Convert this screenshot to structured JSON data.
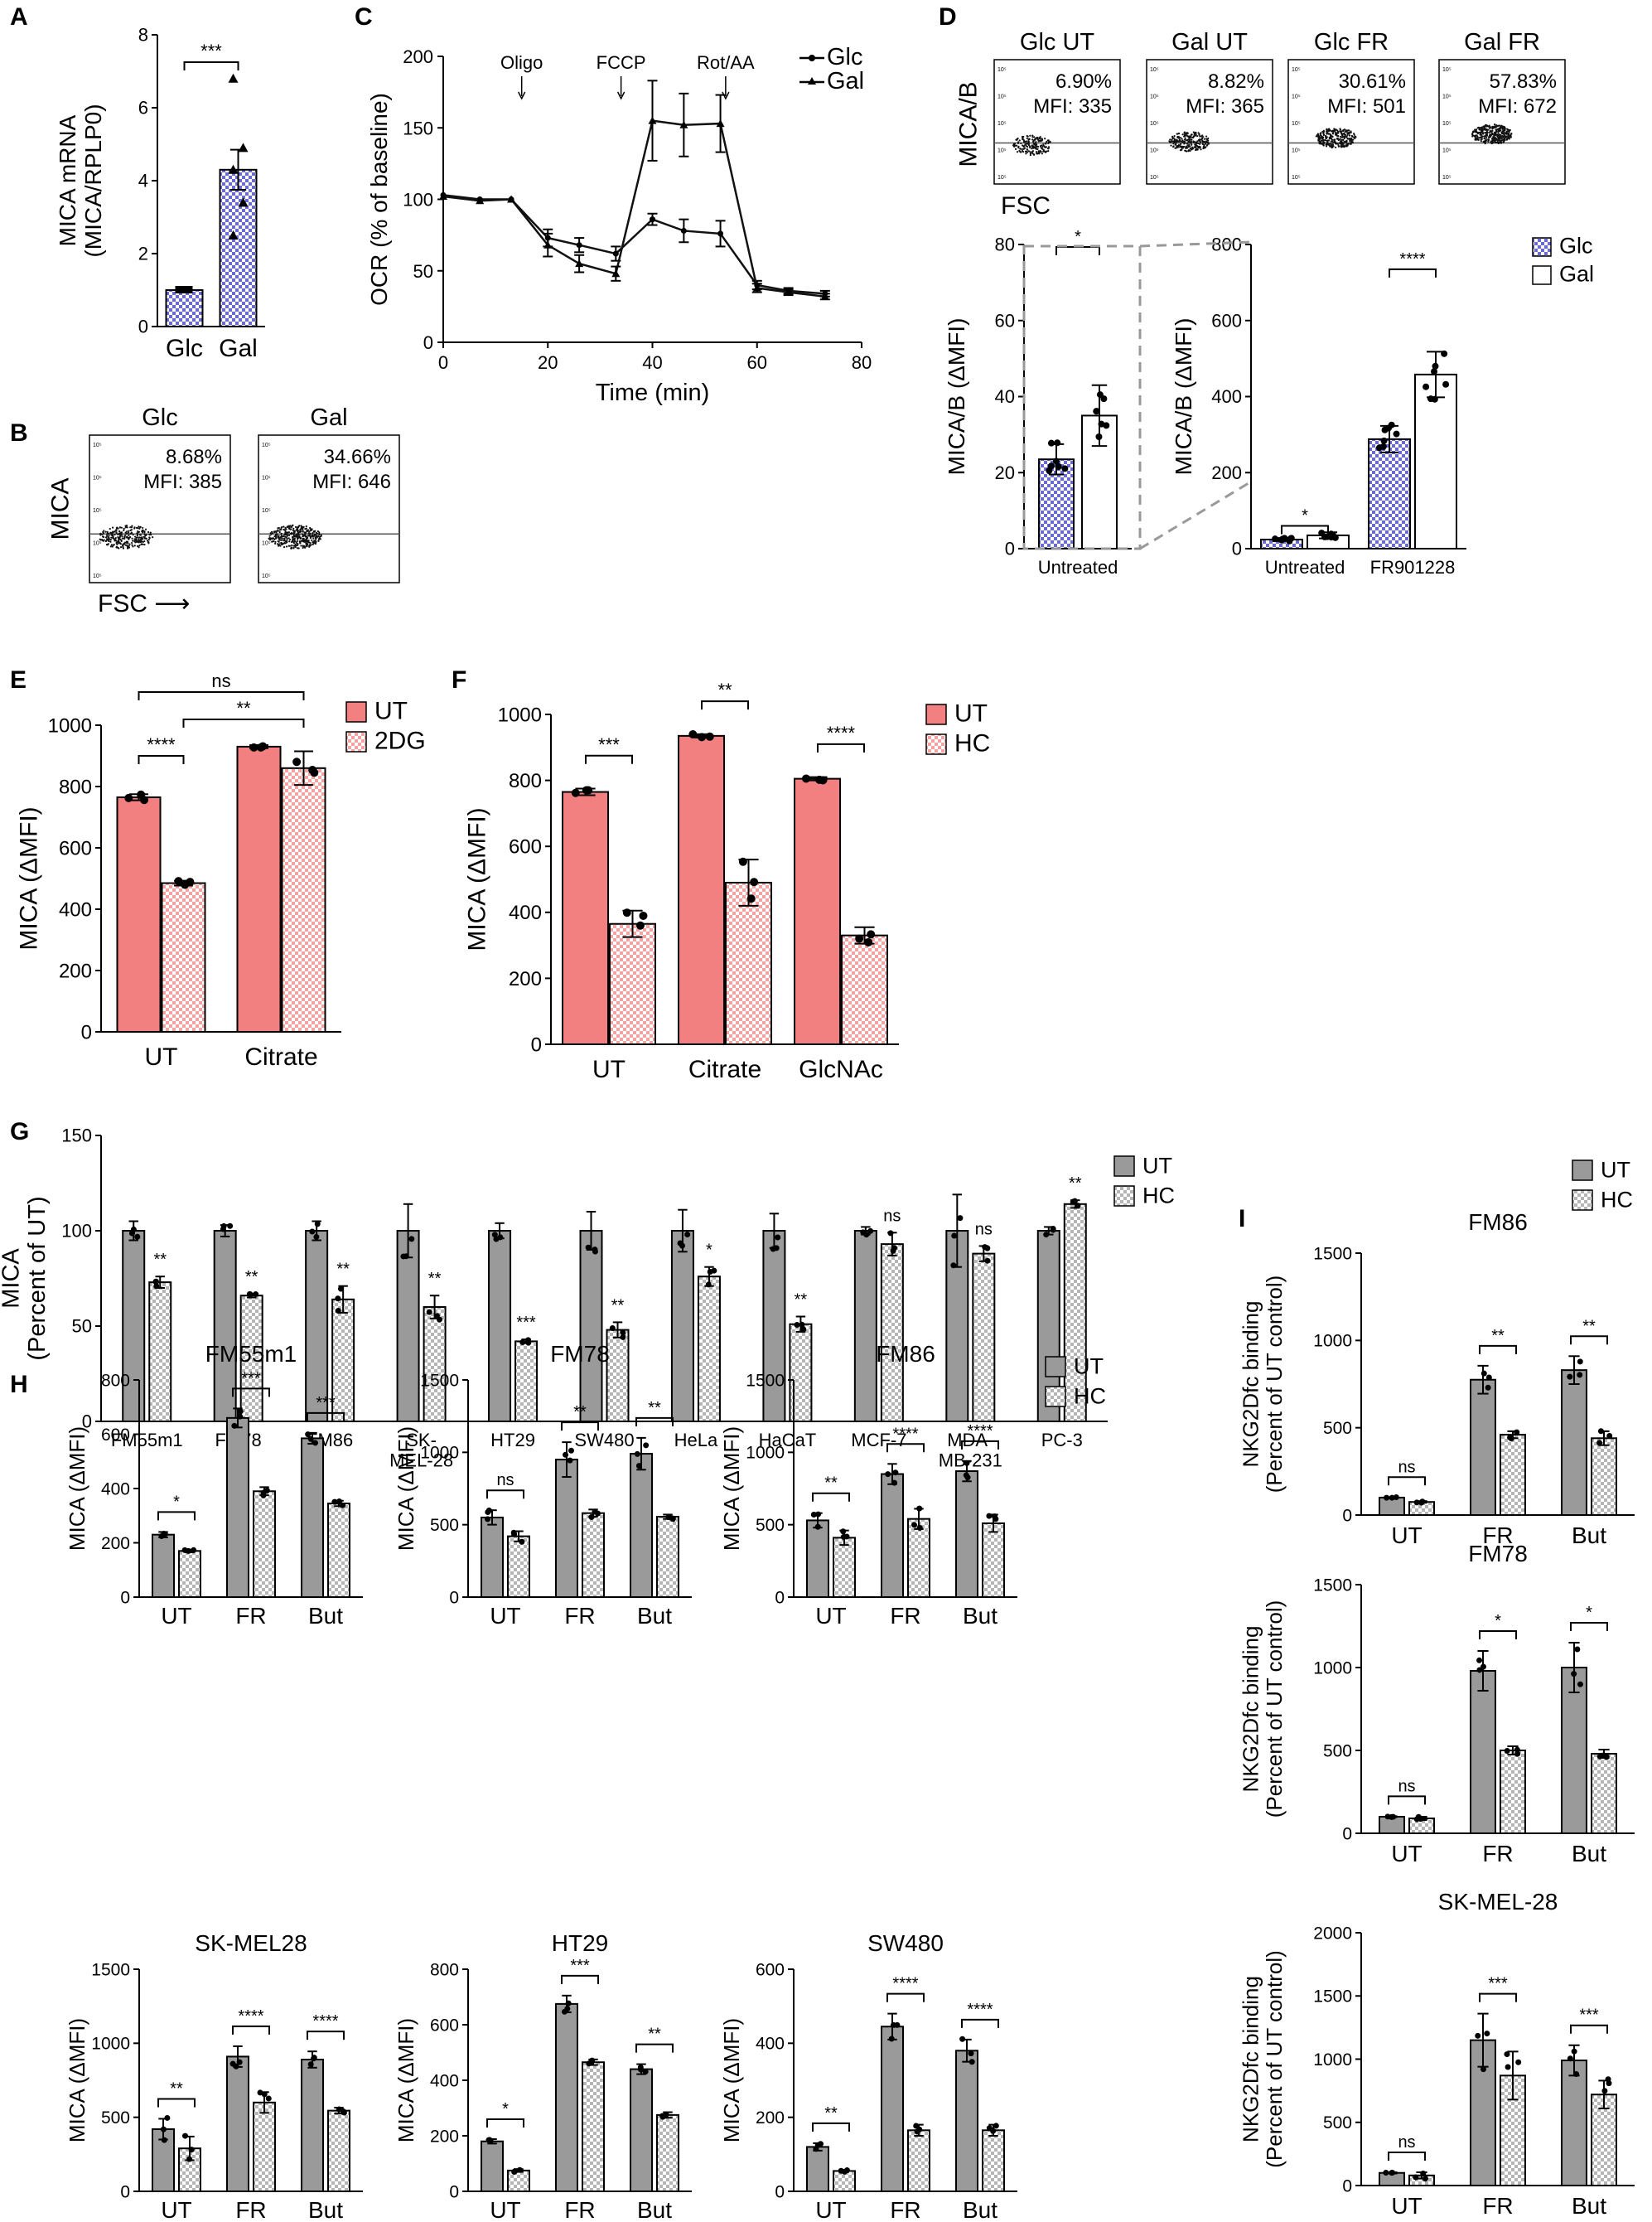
{
  "colors": {
    "red": "#f28080",
    "grey": "#9a9a9a",
    "blue": "#6a6ad0",
    "line": "#111111"
  },
  "chart_data": [
    {
      "id": "A",
      "type": "bar",
      "panel_label": "A",
      "categories": [
        "Glc",
        "Gal"
      ],
      "values": [
        1.0,
        4.3
      ],
      "errors": [
        0.05,
        0.55
      ],
      "points": [
        [
          1,
          1,
          1,
          1,
          1
        ],
        [
          6.8,
          4.9,
          4.3,
          3.4,
          2.5
        ]
      ],
      "ylabel": "MICA mRNA\n(MICA/RPLP0)",
      "ylim": [
        0,
        8
      ],
      "yticks": [
        0,
        2,
        4,
        6,
        8
      ],
      "sig": [
        {
          "a": 0,
          "b": 1,
          "label": "***"
        }
      ],
      "legend": "none"
    },
    {
      "id": "C",
      "type": "line",
      "panel_label": "C",
      "xlabel": "Time (min)",
      "ylabel": "OCR (% of baseline)",
      "xlim": [
        0,
        80
      ],
      "ylim": [
        0,
        200
      ],
      "xticks": [
        0,
        20,
        40,
        60,
        80
      ],
      "yticks": [
        0,
        50,
        100,
        150,
        200
      ],
      "series": [
        {
          "name": "Glc",
          "x": [
            0,
            7,
            13,
            20,
            26,
            33,
            40,
            46,
            53,
            60,
            66,
            73
          ],
          "y": [
            103,
            100,
            100,
            73,
            68,
            62,
            86,
            78,
            76,
            40,
            36,
            34
          ],
          "err": [
            0,
            0,
            0,
            6,
            5,
            5,
            4,
            8,
            9,
            3,
            2,
            2
          ]
        },
        {
          "name": "Gal",
          "x": [
            0,
            7,
            13,
            20,
            26,
            33,
            40,
            46,
            53,
            60,
            66,
            73
          ],
          "y": [
            102,
            99,
            100,
            68,
            55,
            48,
            155,
            152,
            153,
            38,
            35,
            32
          ],
          "err": [
            0,
            0,
            0,
            8,
            6,
            5,
            28,
            22,
            20,
            3,
            2,
            2
          ]
        }
      ],
      "annotations": [
        {
          "text": "Oligo",
          "x": 15
        },
        {
          "text": "FCCP",
          "x": 34
        },
        {
          "text": "Rot/AA",
          "x": 54
        }
      ],
      "legend": "top-right"
    },
    {
      "id": "D1",
      "type": "bar",
      "panel_label": "",
      "categories": [
        "Untreated"
      ],
      "series": [
        {
          "name": "Glc",
          "values": [
            23.5
          ],
          "errors": [
            4.0
          ]
        },
        {
          "name": "Gal",
          "values": [
            35
          ],
          "errors": [
            8
          ]
        }
      ],
      "ylabel": "MICA/B (ΔMFI)",
      "ylim": [
        0,
        80
      ],
      "yticks": [
        0,
        20,
        40,
        60,
        80
      ],
      "sig": [
        {
          "label": "*"
        }
      ],
      "legend": "none"
    },
    {
      "id": "D2",
      "type": "bar",
      "panel_label": "",
      "categories": [
        "Untreated",
        "FR901228"
      ],
      "series": [
        {
          "name": "Glc",
          "values": [
            24,
            288
          ],
          "errors": [
            4,
            35
          ]
        },
        {
          "name": "Gal",
          "values": [
            35,
            458
          ],
          "errors": [
            8,
            60
          ]
        }
      ],
      "ylabel": "MICA/B (ΔMFI)",
      "ylim": [
        0,
        800
      ],
      "yticks": [
        0,
        200,
        400,
        600,
        800
      ],
      "sig": [
        {
          "label": "*"
        },
        {
          "label": "****"
        }
      ],
      "legend": "right"
    },
    {
      "id": "E",
      "type": "bar",
      "panel_label": "E",
      "categories": [
        "UT",
        "Citrate"
      ],
      "series": [
        {
          "name": "UT",
          "values": [
            765,
            930
          ],
          "errors": [
            10,
            5
          ]
        },
        {
          "name": "2DG",
          "values": [
            485,
            860
          ],
          "errors": [
            8,
            55
          ]
        }
      ],
      "ylabel": "MICA (ΔMFI)",
      "ylim": [
        0,
        1000
      ],
      "yticks": [
        0,
        200,
        400,
        600,
        800,
        1000
      ],
      "sig": [
        {
          "label": "****"
        },
        {
          "label": "ns"
        },
        {
          "label": "**"
        }
      ],
      "legend": "top-right"
    },
    {
      "id": "F",
      "type": "bar",
      "panel_label": "F",
      "categories": [
        "UT",
        "Citrate",
        "GlcNAc"
      ],
      "series": [
        {
          "name": "UT",
          "values": [
            765,
            935,
            805
          ],
          "errors": [
            10,
            5,
            5
          ]
        },
        {
          "name": "HC",
          "values": [
            365,
            490,
            330
          ],
          "errors": [
            40,
            70,
            25
          ]
        }
      ],
      "ylabel": "MICA (ΔMFI)",
      "ylim": [
        0,
        1000
      ],
      "yticks": [
        0,
        200,
        400,
        600,
        800,
        1000
      ],
      "sig": [
        {
          "label": "***"
        },
        {
          "label": "**"
        },
        {
          "label": "****"
        }
      ],
      "legend": "top-right"
    },
    {
      "id": "G",
      "type": "bar",
      "panel_label": "G",
      "categories": [
        "FM55m1",
        "FM78",
        "FM86",
        "SK-\nMEL-28",
        "HT29",
        "SW480",
        "HeLa",
        "HaCaT",
        "MCF-7",
        "MDA-\nMB-231",
        "PC-3"
      ],
      "series": [
        {
          "name": "UT",
          "values": [
            100,
            100,
            100,
            100,
            100,
            100,
            100,
            100,
            100,
            100,
            100
          ],
          "errors": [
            5,
            3,
            5,
            14,
            4,
            10,
            11,
            9,
            2,
            19,
            2
          ]
        },
        {
          "name": "HC",
          "values": [
            73,
            66,
            64,
            60,
            42,
            48,
            76,
            51,
            93,
            88,
            114
          ],
          "errors": [
            3,
            1,
            7,
            6,
            1,
            4,
            5,
            4,
            6,
            4,
            2
          ]
        }
      ],
      "sig_labels": [
        "**",
        "**",
        "**",
        "**",
        "***",
        "**",
        "*",
        "**",
        "ns",
        "ns",
        "**"
      ],
      "ylabel": "MICA\n(Percent of UT)",
      "ylim": [
        0,
        150
      ],
      "yticks": [
        0,
        50,
        100,
        150
      ],
      "legend": "top-right"
    },
    {
      "id": "H1",
      "type": "bar",
      "panel_label": "H",
      "title": "FM55m1",
      "categories": [
        "UT",
        "FR",
        "But"
      ],
      "series": [
        {
          "name": "UT",
          "values": [
            230,
            660,
            585
          ],
          "errors": [
            10,
            35,
            20
          ]
        },
        {
          "name": "HC",
          "values": [
            170,
            390,
            345
          ],
          "errors": [
            5,
            15,
            10
          ]
        }
      ],
      "ylabel": "MICA (ΔMFI)",
      "ylim": [
        0,
        800
      ],
      "yticks": [
        0,
        200,
        400,
        600,
        800
      ],
      "sig_labels": [
        "*",
        "***",
        "***"
      ],
      "legend": "none"
    },
    {
      "id": "H2",
      "type": "bar",
      "panel_label": "",
      "title": "FM78",
      "categories": [
        "UT",
        "FR",
        "But"
      ],
      "series": [
        {
          "name": "UT",
          "values": [
            550,
            950,
            990
          ],
          "errors": [
            50,
            120,
            110
          ]
        },
        {
          "name": "HC",
          "values": [
            420,
            580,
            555
          ],
          "errors": [
            35,
            25,
            15
          ]
        }
      ],
      "ylabel": "MICA (ΔMFI)",
      "ylim": [
        0,
        1500
      ],
      "yticks": [
        0,
        500,
        1000,
        1500
      ],
      "sig_labels": [
        "ns",
        "**",
        "**"
      ],
      "legend": "none"
    },
    {
      "id": "H3",
      "type": "bar",
      "panel_label": "",
      "title": "FM86",
      "categories": [
        "UT",
        "FR",
        "But"
      ],
      "series": [
        {
          "name": "UT",
          "values": [
            530,
            850,
            870
          ],
          "errors": [
            50,
            70,
            70
          ]
        },
        {
          "name": "HC",
          "values": [
            410,
            540,
            510
          ],
          "errors": [
            50,
            70,
            60
          ]
        }
      ],
      "ylabel": "MICA (ΔMFI)",
      "ylim": [
        0,
        1500
      ],
      "yticks": [
        0,
        500,
        1000,
        1500
      ],
      "sig_labels": [
        "**",
        "****",
        "****"
      ],
      "legend": "top-right"
    },
    {
      "id": "H4",
      "type": "bar",
      "panel_label": "",
      "title": "SK-MEL28",
      "categories": [
        "UT",
        "FR",
        "But"
      ],
      "series": [
        {
          "name": "UT",
          "values": [
            420,
            910,
            890
          ],
          "errors": [
            70,
            70,
            55
          ]
        },
        {
          "name": "HC",
          "values": [
            290,
            600,
            545
          ],
          "errors": [
            80,
            70,
            20
          ]
        }
      ],
      "ylabel": "MICA (ΔMFI)",
      "ylim": [
        0,
        1500
      ],
      "yticks": [
        0,
        500,
        1000,
        1500
      ],
      "sig_labels": [
        "**",
        "****",
        "****"
      ],
      "legend": "none"
    },
    {
      "id": "H5",
      "type": "bar",
      "panel_label": "",
      "title": "HT29",
      "categories": [
        "UT",
        "FR",
        "But"
      ],
      "series": [
        {
          "name": "UT",
          "values": [
            180,
            675,
            440
          ],
          "errors": [
            8,
            30,
            18
          ]
        },
        {
          "name": "HC",
          "values": [
            75,
            465,
            275
          ],
          "errors": [
            5,
            10,
            10
          ]
        }
      ],
      "ylabel": "MICA (ΔMFI)",
      "ylim": [
        0,
        800
      ],
      "yticks": [
        0,
        200,
        400,
        600,
        800
      ],
      "sig_labels": [
        "*",
        "***",
        "**"
      ],
      "legend": "none"
    },
    {
      "id": "H6",
      "type": "bar",
      "panel_label": "",
      "title": "SW480",
      "categories": [
        "UT",
        "FR",
        "But"
      ],
      "series": [
        {
          "name": "UT",
          "values": [
            120,
            445,
            380
          ],
          "errors": [
            10,
            35,
            30
          ]
        },
        {
          "name": "HC",
          "values": [
            55,
            165,
            165
          ],
          "errors": [
            3,
            15,
            15
          ]
        }
      ],
      "ylabel": "MICA (ΔMFI)",
      "ylim": [
        0,
        600
      ],
      "yticks": [
        0,
        200,
        400,
        600
      ],
      "sig_labels": [
        "**",
        "****",
        "****"
      ],
      "legend": "none"
    },
    {
      "id": "I1",
      "type": "bar",
      "panel_label": "I",
      "title": "FM86",
      "categories": [
        "UT",
        "FR",
        "But"
      ],
      "series": [
        {
          "name": "UT",
          "values": [
            100,
            775,
            830
          ],
          "errors": [
            3,
            80,
            80
          ]
        },
        {
          "name": "HC",
          "values": [
            75,
            460,
            440
          ],
          "errors": [
            5,
            20,
            40
          ]
        }
      ],
      "ylabel": "NKG2Dfc binding\n(Percent of UT control)",
      "ylim": [
        0,
        1500
      ],
      "yticks": [
        0,
        500,
        1000,
        1500
      ],
      "sig_labels": [
        "ns",
        "**",
        "**"
      ],
      "legend": "top-right"
    },
    {
      "id": "I2",
      "type": "bar",
      "panel_label": "",
      "title": "FM78",
      "categories": [
        "UT",
        "FR",
        "But"
      ],
      "series": [
        {
          "name": "UT",
          "values": [
            100,
            980,
            1000
          ],
          "errors": [
            3,
            120,
            150
          ]
        },
        {
          "name": "HC",
          "values": [
            90,
            500,
            480
          ],
          "errors": [
            10,
            25,
            25
          ]
        }
      ],
      "ylabel": "NKG2Dfc binding\n(Percent of UT control)",
      "ylim": [
        0,
        1500
      ],
      "yticks": [
        0,
        500,
        1000,
        1500
      ],
      "sig_labels": [
        "ns",
        "*",
        "*"
      ],
      "legend": "none"
    },
    {
      "id": "I3",
      "type": "bar",
      "panel_label": "",
      "title": "SK-MEL-28",
      "categories": [
        "UT",
        "FR",
        "But"
      ],
      "series": [
        {
          "name": "UT",
          "values": [
            100,
            1150,
            990
          ],
          "errors": [
            5,
            210,
            120
          ]
        },
        {
          "name": "HC",
          "values": [
            80,
            870,
            720
          ],
          "errors": [
            25,
            190,
            110
          ]
        }
      ],
      "ylabel": "NKG2Dfc binding\n(Percent of UT control)",
      "ylim": [
        0,
        2000
      ],
      "yticks": [
        0,
        500,
        1000,
        1500,
        2000
      ],
      "sig_labels": [
        "ns",
        "***",
        "***"
      ],
      "legend": "none"
    }
  ],
  "flow_plots": {
    "B": {
      "panel_label": "B",
      "titles": [
        "Glc",
        "Gal"
      ],
      "pct": [
        "8.68%",
        "34.66%"
      ],
      "mfi": [
        "MFI: 385",
        "MFI: 646"
      ],
      "ylabel": "MICA",
      "xlabel": "FSC ⟶"
    },
    "D": {
      "panel_label": "D",
      "titles": [
        "Glc UT",
        "Gal UT",
        "Glc FR",
        "Gal FR"
      ],
      "pct": [
        "6.90%",
        "8.82%",
        "30.61%",
        "57.83%"
      ],
      "mfi": [
        "MFI: 335",
        "MFI: 365",
        "MFI: 501",
        "MFI: 672"
      ],
      "ylabel": "MICA/B",
      "xlabel": "FSC"
    }
  }
}
